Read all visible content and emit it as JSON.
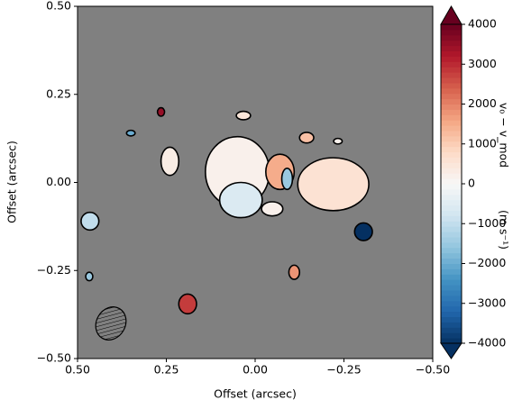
{
  "chart_data": {
    "type": "heatmap",
    "xlabel": "Offset (arcsec)",
    "ylabel": "Offset (arcsec)",
    "xlim": [
      0.5,
      -0.5
    ],
    "ylim": [
      -0.5,
      0.5
    ],
    "xticks": [
      {
        "value": 0.5,
        "label": "0.50"
      },
      {
        "value": 0.25,
        "label": "0.25"
      },
      {
        "value": 0,
        "label": "0.00"
      },
      {
        "value": -0.25,
        "label": "−0.25"
      },
      {
        "value": -0.5,
        "label": "−0.50"
      }
    ],
    "yticks": [
      {
        "value": -0.5,
        "label": "−0.50"
      },
      {
        "value": -0.25,
        "label": "−0.25"
      },
      {
        "value": 0,
        "label": "0.00"
      },
      {
        "value": 0.25,
        "label": "0.25"
      },
      {
        "value": 0.5,
        "label": "0.50"
      }
    ],
    "background": "#808080",
    "colormap": "RdBu_r",
    "colorbar_label": "v₀ − v_mod",
    "colorbar_units": "(m s⁻¹)",
    "clim": [
      -4000,
      4000
    ],
    "cticks": [
      {
        "value": -4000,
        "label": "−4000"
      },
      {
        "value": -3000,
        "label": "−3000"
      },
      {
        "value": -2000,
        "label": "−2000"
      },
      {
        "value": -1000,
        "label": "−1000"
      },
      0,
      1000,
      2000,
      3000,
      4000
    ],
    "regions": [
      {
        "x": 0.05,
        "y": 0.03,
        "rx": 0.09,
        "ry": 0.1,
        "value": 200
      },
      {
        "x": 0.04,
        "y": -0.05,
        "rx": 0.06,
        "ry": 0.05,
        "value": -600
      },
      {
        "x": -0.22,
        "y": -0.005,
        "rx": 0.1,
        "ry": 0.075,
        "value": 600
      },
      {
        "x": -0.07,
        "y": 0.03,
        "rx": 0.04,
        "ry": 0.05,
        "value": 1500
      },
      {
        "x": -0.09,
        "y": 0.01,
        "rx": 0.015,
        "ry": 0.03,
        "value": -1500
      },
      {
        "x": -0.048,
        "y": -0.075,
        "rx": 0.03,
        "ry": 0.02,
        "value": 200
      },
      {
        "x": 0.24,
        "y": 0.06,
        "rx": 0.025,
        "ry": 0.04,
        "value": 300
      },
      {
        "x": 0.033,
        "y": 0.19,
        "rx": 0.02,
        "ry": 0.012,
        "value": 500
      },
      {
        "x": -0.145,
        "y": 0.127,
        "rx": 0.02,
        "ry": 0.015,
        "value": 1200
      },
      {
        "x": -0.233,
        "y": 0.117,
        "rx": 0.012,
        "ry": 0.008,
        "value": 200
      },
      {
        "x": 0.265,
        "y": 0.2,
        "rx": 0.01,
        "ry": 0.012,
        "value": 3500
      },
      {
        "x": 0.35,
        "y": 0.14,
        "rx": 0.012,
        "ry": 0.008,
        "value": -2000
      },
      {
        "x": -0.305,
        "y": -0.14,
        "rx": 0.025,
        "ry": 0.025,
        "value": -4000
      },
      {
        "x": -0.11,
        "y": -0.255,
        "rx": 0.015,
        "ry": 0.02,
        "value": 1800
      },
      {
        "x": 0.19,
        "y": -0.345,
        "rx": 0.025,
        "ry": 0.028,
        "value": 2800
      },
      {
        "x": 0.465,
        "y": -0.11,
        "rx": 0.025,
        "ry": 0.025,
        "value": -1000
      },
      {
        "x": 0.467,
        "y": -0.267,
        "rx": 0.01,
        "ry": 0.012,
        "value": -1500
      }
    ]
  }
}
